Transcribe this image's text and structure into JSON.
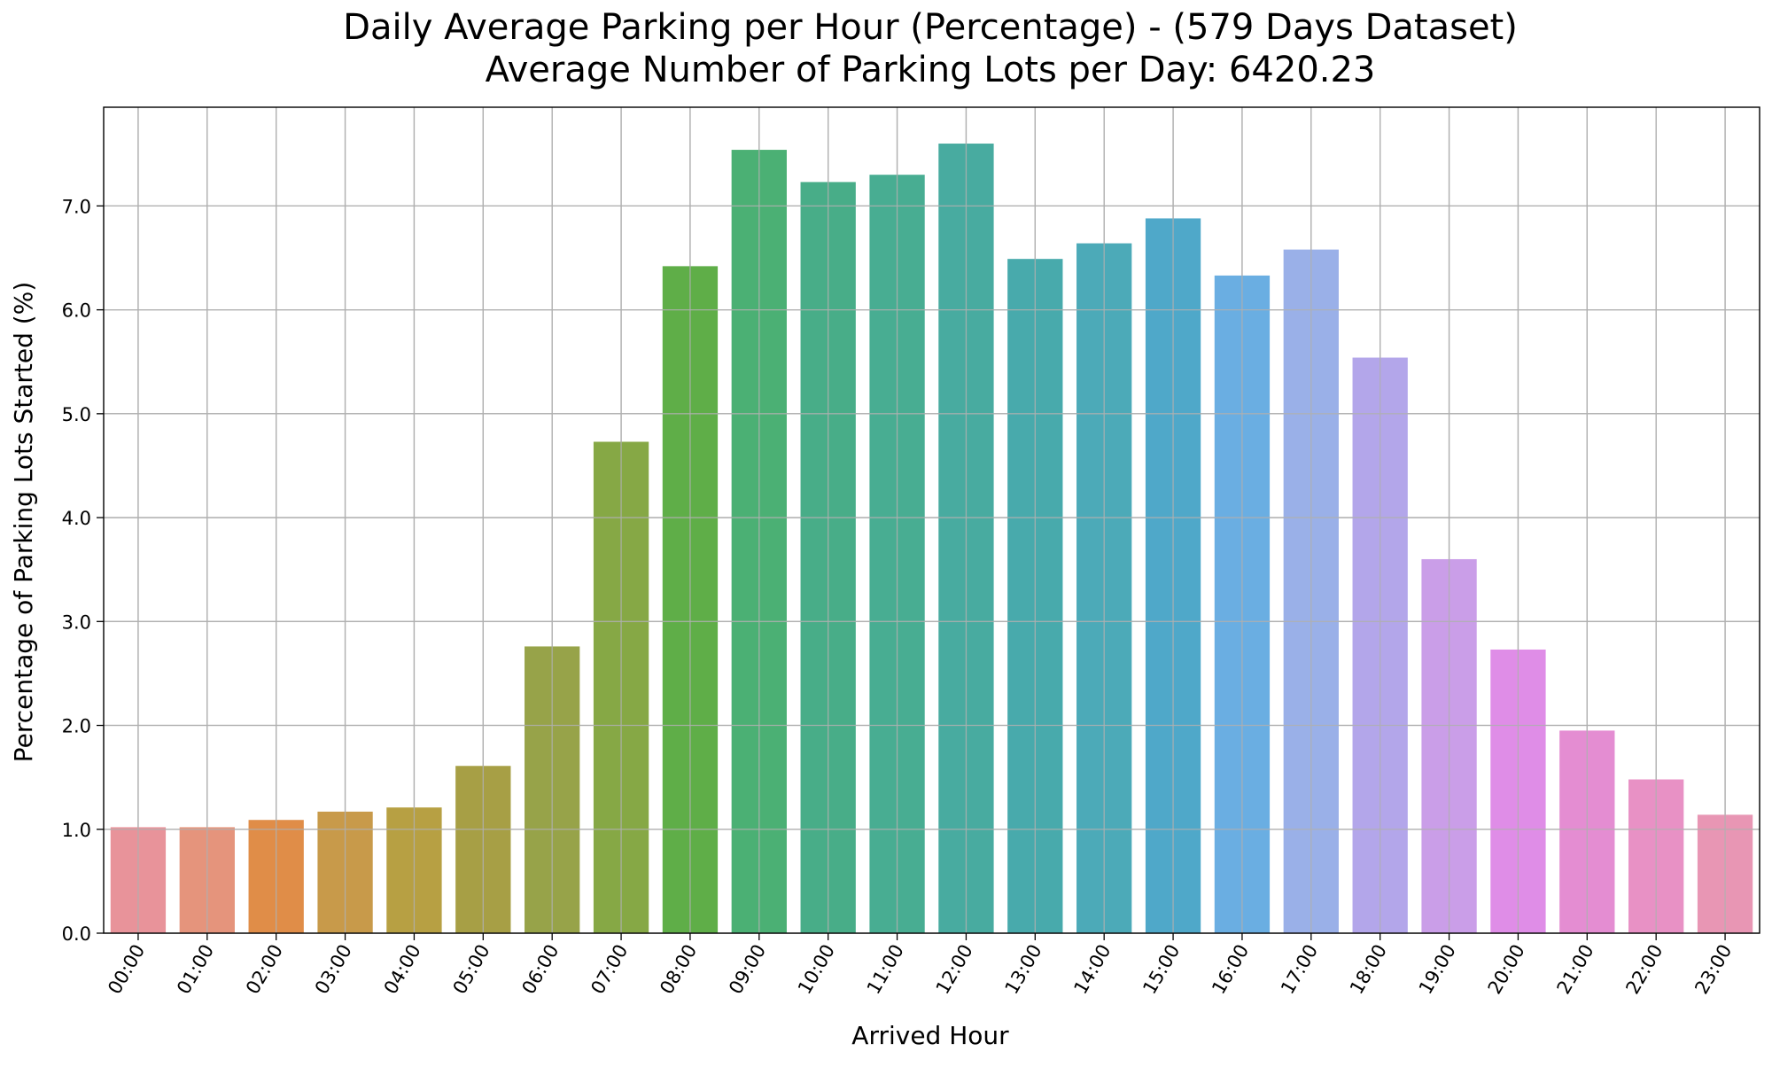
{
  "chart_data": {
    "type": "bar",
    "title": "Daily Average Parking per Hour (Percentage) - (579 Days Dataset)",
    "subtitle": "Average Number of Parking Lots per Day: 6420.23",
    "xlabel": "Arrived Hour",
    "ylabel": "Percentage of Parking Lots Started (%)",
    "ylim": [
      0,
      7.95
    ],
    "yticks": [
      0.0,
      1.0,
      2.0,
      3.0,
      4.0,
      5.0,
      6.0,
      7.0
    ],
    "ytick_labels": [
      "0.0",
      "1.0",
      "2.0",
      "3.0",
      "4.0",
      "5.0",
      "6.0",
      "7.0"
    ],
    "grid": true,
    "categories": [
      "00:00",
      "01:00",
      "02:00",
      "03:00",
      "04:00",
      "05:00",
      "06:00",
      "07:00",
      "08:00",
      "09:00",
      "10:00",
      "11:00",
      "12:00",
      "13:00",
      "14:00",
      "15:00",
      "16:00",
      "17:00",
      "18:00",
      "19:00",
      "20:00",
      "21:00",
      "22:00",
      "23:00"
    ],
    "values": [
      1.02,
      1.02,
      1.09,
      1.17,
      1.21,
      1.61,
      2.76,
      4.73,
      6.42,
      7.54,
      7.23,
      7.3,
      7.6,
      6.49,
      6.64,
      6.88,
      6.33,
      6.58,
      5.54,
      3.6,
      2.73,
      1.95,
      1.48,
      1.14
    ],
    "colors": [
      "#e8939a",
      "#e5947c",
      "#e08d48",
      "#c89a4a",
      "#b7a043",
      "#a79f45",
      "#97a349",
      "#86a845",
      "#5fae48",
      "#4bb074",
      "#48ad88",
      "#48ad92",
      "#48aba0",
      "#48aaac",
      "#4caab8",
      "#4fa8c9",
      "#6aaee2",
      "#9ab0e8",
      "#b3a6ea",
      "#ca9ee8",
      "#df8de7",
      "#e48dd2",
      "#e891c5",
      "#e896b4"
    ]
  }
}
